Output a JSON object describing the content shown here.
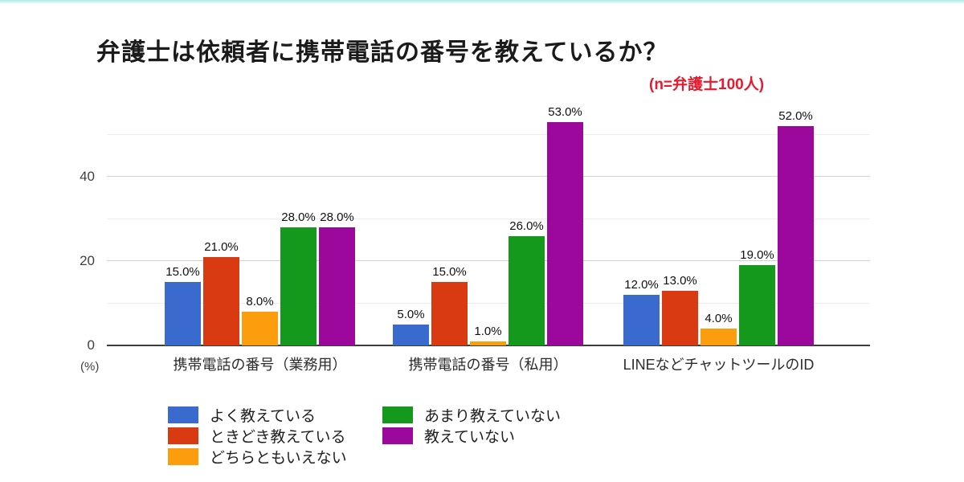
{
  "page": {
    "background_color": "#ffffff",
    "top_strip_color": "#a9e9e0"
  },
  "chart_data": {
    "type": "bar",
    "title": "弁護士は依頼者に携帯電話の番号を教えているか？",
    "annotation": "(n=弁護士100人)",
    "annotation_color": "#e8192c",
    "categories": [
      "携帯電話の番号（業務用）",
      "携帯電話の番号（私用）",
      "LINEなどチャットツールのID"
    ],
    "series": [
      {
        "name": "よく教えている",
        "color": "#3b6ace",
        "values": [
          15.0,
          5.0,
          12.0
        ]
      },
      {
        "name": "ときどき教えている",
        "color": "#d93a12",
        "values": [
          21.0,
          15.0,
          13.0
        ]
      },
      {
        "name": "どちらともいえない",
        "color": "#fb9d0c",
        "values": [
          8.0,
          1.0,
          4.0
        ]
      },
      {
        "name": "あまり教えていない",
        "color": "#15991c",
        "values": [
          28.0,
          26.0,
          19.0
        ]
      },
      {
        "name": "教えていない",
        "color": "#9c079c",
        "values": [
          28.0,
          53.0,
          52.0
        ]
      }
    ],
    "value_label_suffix": "%",
    "ylabel": "(%)",
    "yticks": [
      0,
      20,
      40
    ],
    "minor_gridlines": [
      10,
      30,
      50
    ],
    "ylim": [
      0,
      55.2
    ],
    "grid": true,
    "legend_position": "bottom-left",
    "legend_columns": [
      [
        0,
        1,
        2
      ],
      [
        3,
        4
      ]
    ]
  }
}
